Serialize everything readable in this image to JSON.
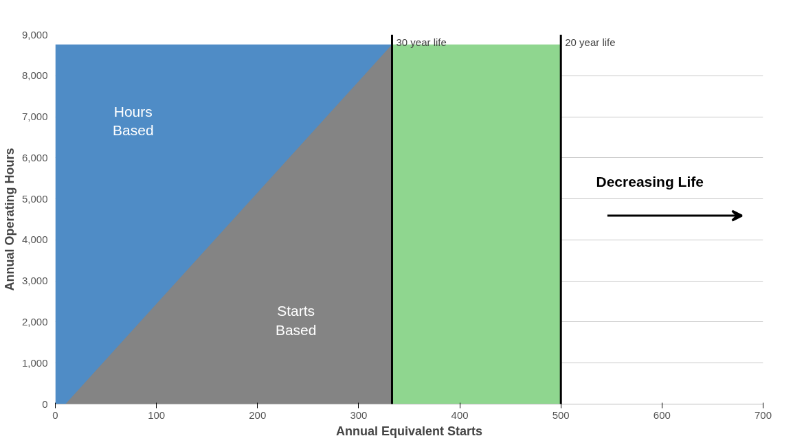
{
  "chart_data": {
    "type": "area",
    "xlabel": "Annual Equivalent Starts",
    "ylabel": "Annual Operating Hours",
    "series": [
      {
        "color": "#4f8cc6",
        "x": [
          0,
          333
        ],
        "values": [
          8760,
          8760
        ]
      },
      {
        "color": "#848484",
        "x": [
          10,
          333
        ],
        "values": [
          0,
          8760
        ]
      },
      {
        "color": "#8fd68f",
        "x": [
          333,
          500
        ],
        "values": [
          8760,
          8760
        ]
      }
    ],
    "xlim": [
      0,
      700
    ],
    "xticks": [
      0,
      100,
      200,
      300,
      400,
      500,
      600,
      700
    ],
    "ylim": [
      0,
      9000
    ],
    "yticks": [
      {
        "value": 0,
        "label": "0"
      },
      {
        "value": 1000,
        "label": "1,000"
      },
      {
        "value": 2000,
        "label": "2,000"
      },
      {
        "value": 3000,
        "label": "3,000"
      },
      {
        "value": 4000,
        "label": "4,000"
      },
      {
        "value": 5000,
        "label": "5,000"
      },
      {
        "value": 6000,
        "label": "6,000"
      },
      {
        "value": 7000,
        "label": "7,000"
      },
      {
        "value": 8000,
        "label": "8,000"
      },
      {
        "value": 9000,
        "label": "9,000"
      }
    ],
    "grid": "y",
    "ref_lines": [
      {
        "axis": "x",
        "value": 333,
        "label": "30 year life",
        "color": "#000000"
      },
      {
        "axis": "x",
        "value": 500,
        "label": "20 year life",
        "color": "#000000"
      }
    ],
    "annotations": [
      "Hours Based",
      "Starts Based",
      "Decreasing Life"
    ]
  }
}
